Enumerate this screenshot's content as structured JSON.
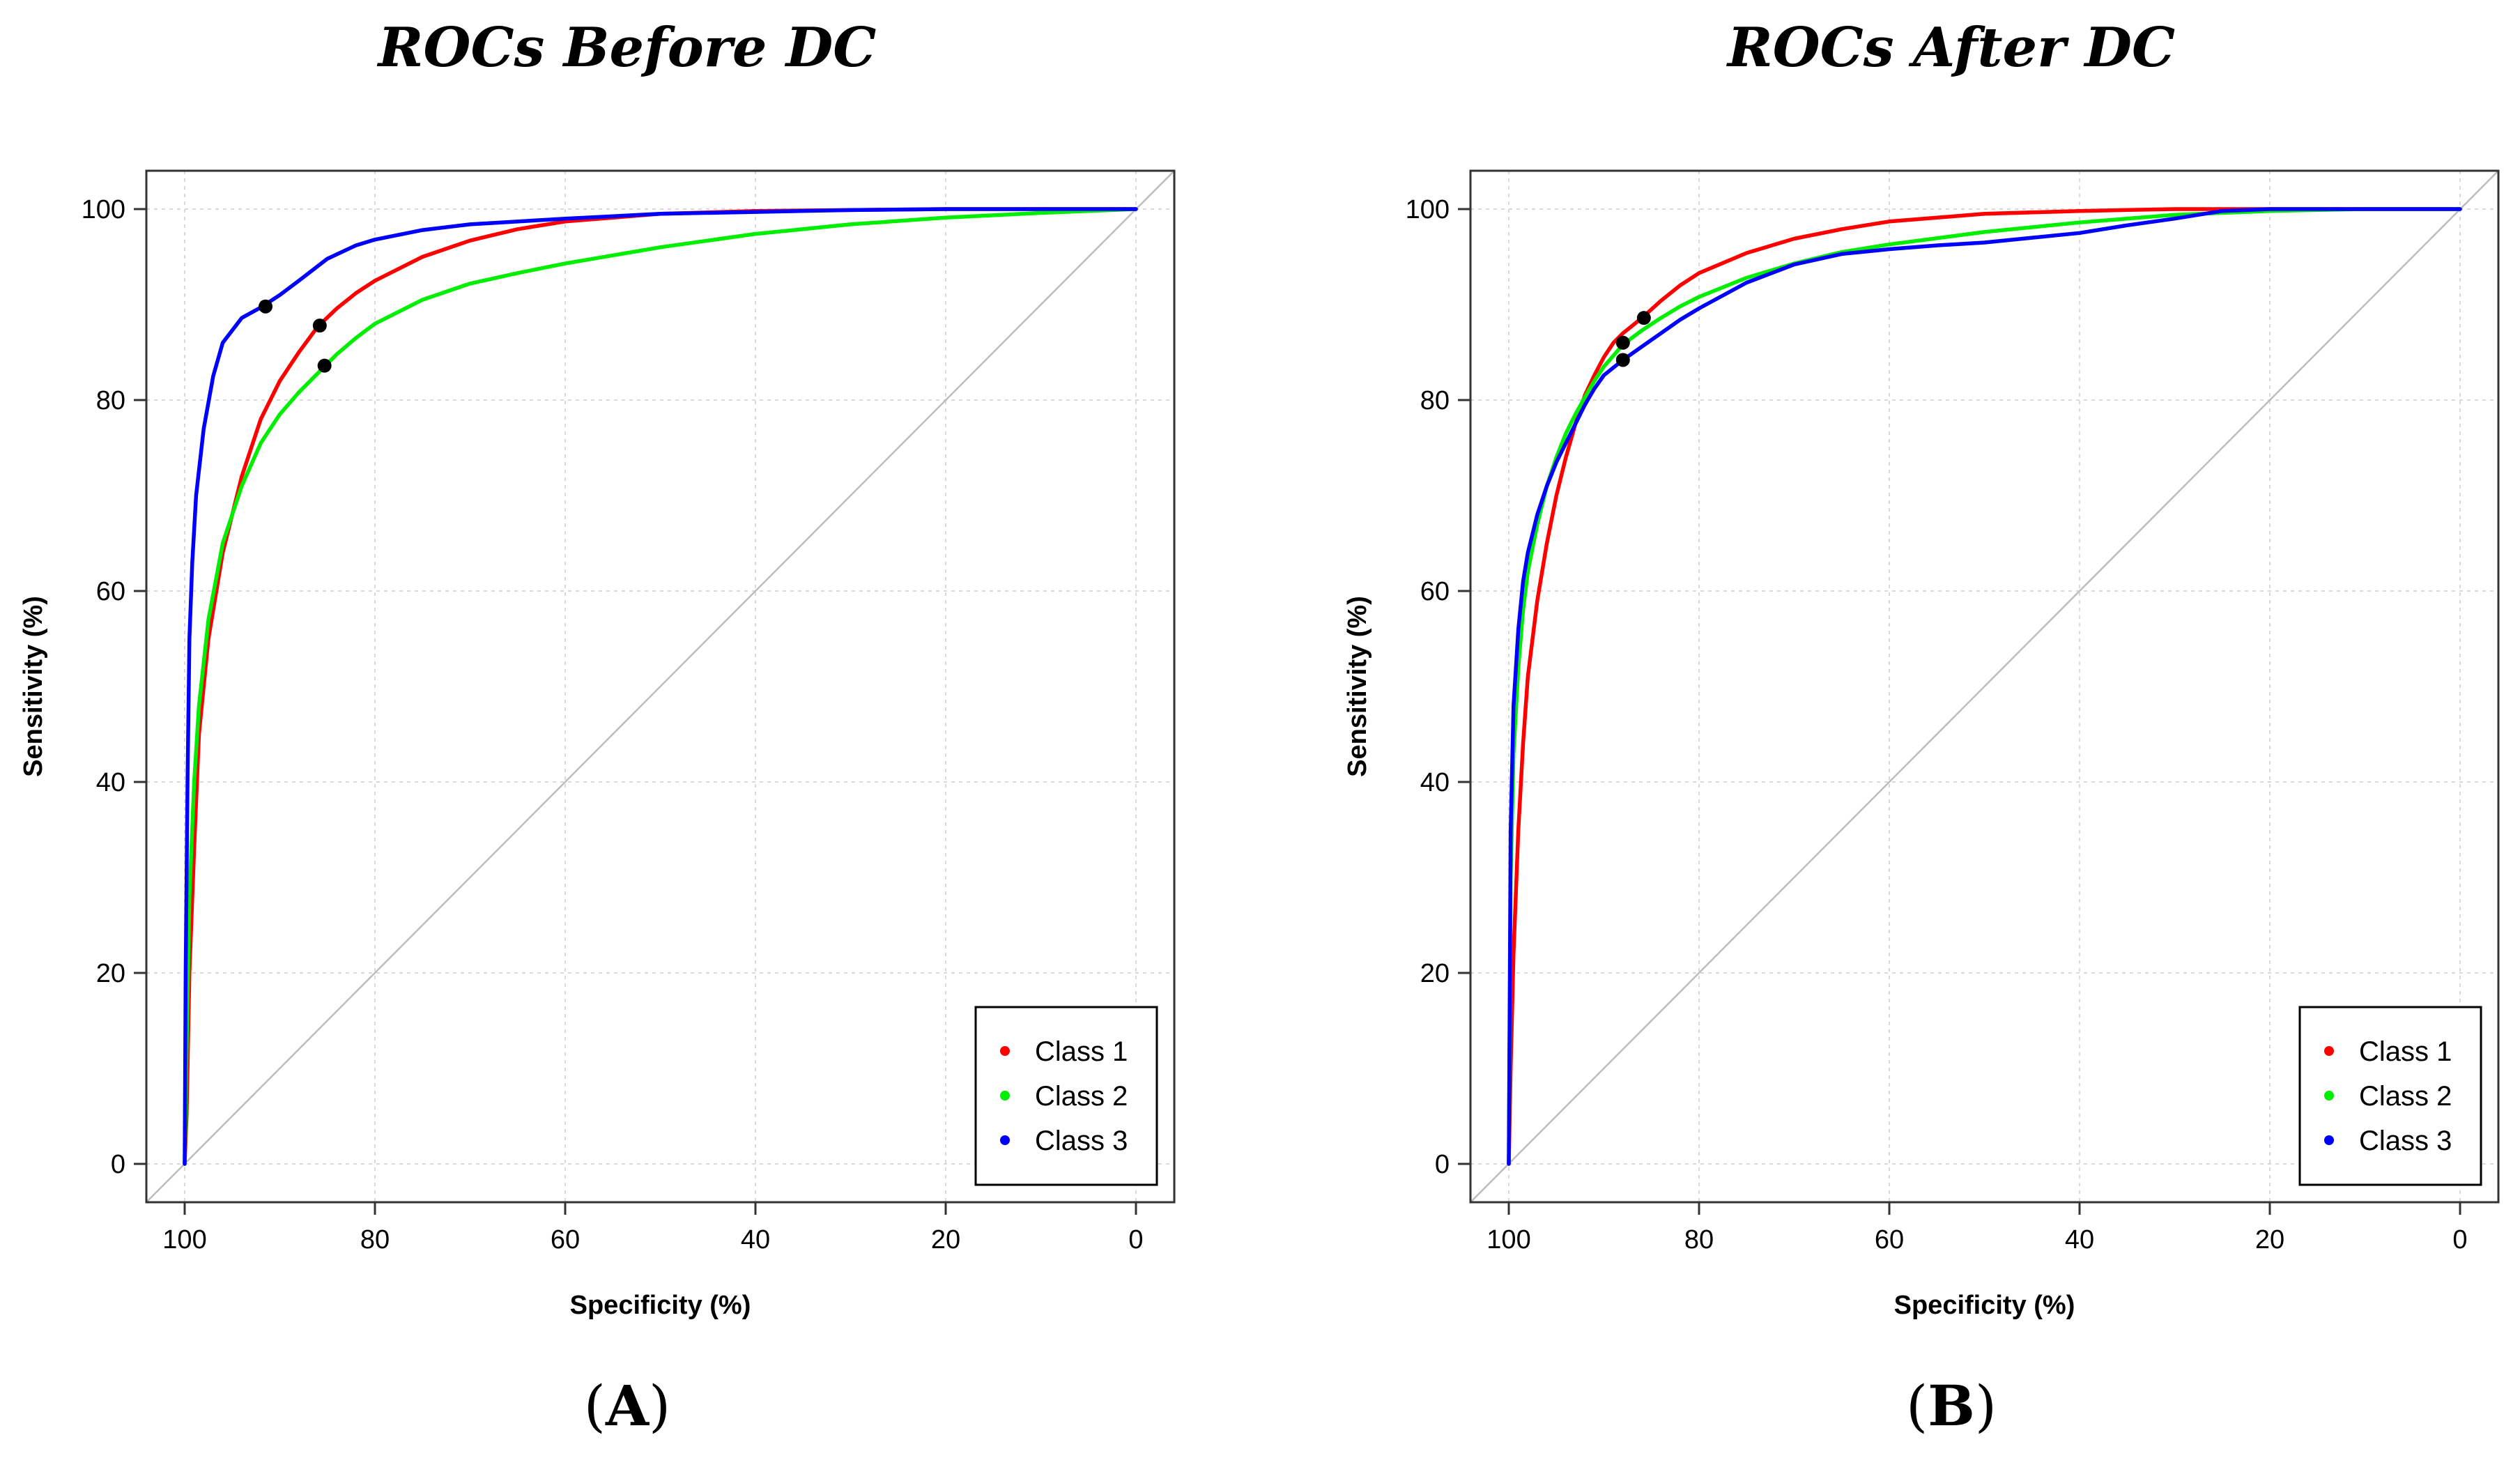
{
  "chart_data": [
    {
      "type": "line",
      "title": "ROCs Before DC",
      "panel_label": "A",
      "xlabel": "Specificity (%)",
      "ylabel": "Sensitivity (%)",
      "xlim": [
        100,
        0
      ],
      "ylim": [
        0,
        100
      ],
      "x_reversed": true,
      "xticks": [
        100,
        80,
        60,
        40,
        20,
        0
      ],
      "yticks": [
        0,
        20,
        40,
        60,
        80,
        100
      ],
      "grid": true,
      "diagonal": true,
      "legend_position": "bottom-right",
      "legend": [
        "Class 1",
        "Class 2",
        "Class 3"
      ],
      "series": [
        {
          "name": "Class 1",
          "color": "#ff0000",
          "x": [
            100,
            99.8,
            99.5,
            99,
            98.5,
            97.5,
            96,
            94,
            92,
            90,
            88,
            86,
            84,
            82,
            80,
            75,
            70,
            65,
            60,
            50,
            40,
            30,
            20,
            10,
            0
          ],
          "y": [
            0,
            5,
            20,
            33,
            45,
            55,
            64,
            72,
            78,
            82,
            85,
            87.7,
            89.6,
            91.2,
            92.5,
            95,
            96.7,
            97.9,
            98.7,
            99.5,
            99.8,
            99.9,
            100,
            100,
            100
          ],
          "cutoff": [
            85.8,
            87.8
          ]
        },
        {
          "name": "Class 2",
          "color": "#00ee00",
          "x": [
            100,
            99.8,
            99.5,
            99,
            98.5,
            97.5,
            96,
            94,
            92,
            90,
            88,
            86,
            84,
            82,
            80,
            75,
            70,
            65,
            60,
            50,
            40,
            30,
            20,
            10,
            0
          ],
          "y": [
            0,
            12,
            28,
            40,
            48,
            57,
            65,
            71,
            75.5,
            78.5,
            80.8,
            82.8,
            84.8,
            86.5,
            88,
            90.5,
            92.2,
            93.3,
            94.3,
            96,
            97.4,
            98.4,
            99.1,
            99.6,
            100
          ],
          "cutoff": [
            85.3,
            83.6
          ]
        },
        {
          "name": "Class 3",
          "color": "#0000ff",
          "x": [
            100,
            99.9,
            99.7,
            99.5,
            99.2,
            98.8,
            98,
            97,
            96,
            94,
            92,
            90,
            88,
            85,
            82,
            80,
            75,
            70,
            60,
            50,
            40,
            30,
            20,
            10,
            0
          ],
          "y": [
            0,
            20,
            40,
            55,
            63,
            70,
            77,
            82.5,
            86,
            88.6,
            89.7,
            91,
            92.5,
            94.8,
            96.2,
            96.8,
            97.8,
            98.4,
            99,
            99.5,
            99.7,
            99.9,
            100,
            100,
            100
          ],
          "cutoff": [
            91.5,
            89.8
          ]
        }
      ]
    },
    {
      "type": "line",
      "title": "ROCs After DC",
      "panel_label": "B",
      "xlabel": "Specificity (%)",
      "ylabel": "Sensitivity (%)",
      "xlim": [
        100,
        0
      ],
      "ylim": [
        0,
        100
      ],
      "x_reversed": true,
      "xticks": [
        100,
        80,
        60,
        40,
        20,
        0
      ],
      "yticks": [
        0,
        20,
        40,
        60,
        80,
        100
      ],
      "grid": true,
      "diagonal": true,
      "legend_position": "bottom-right",
      "legend": [
        "Class 1",
        "Class 2",
        "Class 3"
      ],
      "series": [
        {
          "name": "Class 1",
          "color": "#ff0000",
          "x": [
            100,
            99.8,
            99.5,
            99,
            98.5,
            98,
            97,
            96,
            95,
            94,
            93,
            92,
            91,
            90,
            89,
            88,
            86,
            84,
            82,
            80,
            75,
            70,
            65,
            60,
            50,
            40,
            30,
            20,
            10,
            0
          ],
          "y": [
            0,
            10,
            22,
            35,
            44,
            51,
            59,
            65,
            70,
            74,
            77.5,
            80.5,
            82.6,
            84.5,
            86,
            87,
            88.6,
            90.4,
            92,
            93.3,
            95.4,
            96.9,
            97.9,
            98.7,
            99.5,
            99.8,
            100,
            100,
            100,
            100
          ],
          "cutoff": [
            85.8,
            88.6
          ]
        },
        {
          "name": "Class 2",
          "color": "#00ee00",
          "x": [
            100,
            99.8,
            99.5,
            99,
            98.5,
            98,
            97,
            96,
            95,
            94,
            93,
            92,
            91,
            90,
            88,
            86,
            84,
            82,
            80,
            75,
            70,
            65,
            60,
            50,
            40,
            30,
            20,
            10,
            0
          ],
          "y": [
            0,
            30,
            43,
            52,
            58,
            62,
            67,
            71,
            74,
            76.5,
            78.5,
            80.3,
            82,
            83.5,
            85.8,
            87.3,
            88.6,
            89.8,
            90.8,
            92.8,
            94.3,
            95.5,
            96.3,
            97.6,
            98.6,
            99.4,
            99.8,
            100,
            100
          ],
          "cutoff": [
            88.0,
            86.0
          ]
        },
        {
          "name": "Class 3",
          "color": "#0000ff",
          "x": [
            100,
            99.8,
            99.5,
            99,
            98.5,
            98,
            97,
            96,
            95,
            94,
            93,
            92,
            91,
            90,
            88,
            86,
            84,
            82,
            80,
            75,
            70,
            65,
            60,
            55,
            50,
            45,
            40,
            35,
            30,
            25,
            20,
            10,
            0
          ],
          "y": [
            0,
            35,
            48,
            56,
            61,
            64,
            68,
            71,
            73.5,
            75.5,
            77.5,
            79.5,
            81.2,
            82.6,
            84.2,
            85.6,
            87,
            88.4,
            89.6,
            92.3,
            94.2,
            95.3,
            95.8,
            96.2,
            96.5,
            97,
            97.5,
            98.3,
            99,
            99.8,
            100,
            100,
            100
          ],
          "cutoff": [
            88.0,
            84.2
          ]
        }
      ]
    }
  ]
}
